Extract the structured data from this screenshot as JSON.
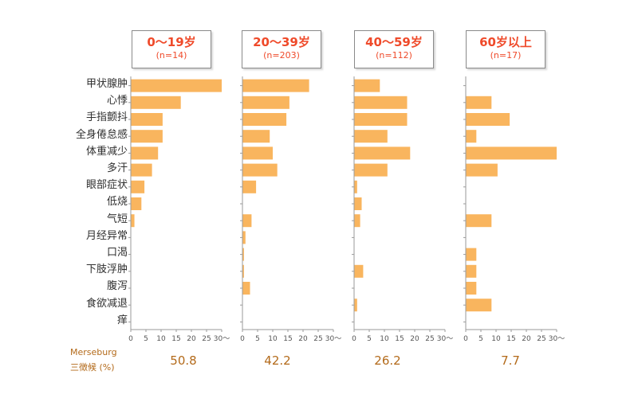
{
  "chart_data": [
    {
      "type": "bar",
      "title": "0～19岁",
      "subtitle": "(n=14)",
      "categories": [
        "甲状腺肿",
        "心悸",
        "手指颤抖",
        "全身倦怠感",
        "体重减少",
        "多汗",
        "眼部症状",
        "低烧",
        "气短",
        "月经异常",
        "口渴",
        "下肢浮肿",
        "腹泻",
        "食欲减退",
        "痒"
      ],
      "values": [
        30,
        16.5,
        10.5,
        10.5,
        9,
        7,
        4.5,
        3.5,
        1.2,
        0,
        0,
        0,
        0,
        0,
        0
      ],
      "xlim": [
        0,
        30
      ],
      "xticks": [
        "0",
        "5",
        "10",
        "15",
        "20",
        "25",
        "30〜"
      ],
      "color": "#f9b55e"
    },
    {
      "type": "bar",
      "title": "20～39岁",
      "subtitle": "(n=203)",
      "categories": [
        "甲状腺肿",
        "心悸",
        "手指颤抖",
        "全身倦怠感",
        "体重减少",
        "多汗",
        "眼部症状",
        "低烧",
        "气短",
        "月经异常",
        "口渴",
        "下肢浮肿",
        "腹泻",
        "食欲减退",
        "痒"
      ],
      "values": [
        22,
        15.5,
        14.5,
        9,
        10,
        11.5,
        4.5,
        0,
        3,
        1,
        0.5,
        0.5,
        2.5,
        0,
        0
      ],
      "xlim": [
        0,
        30
      ],
      "xticks": [
        "0",
        "5",
        "10",
        "15",
        "20",
        "25",
        "30〜"
      ],
      "color": "#f9b55e"
    },
    {
      "type": "bar",
      "title": "40～59岁",
      "subtitle": "(n=112)",
      "categories": [
        "甲状腺肿",
        "心悸",
        "手指颤抖",
        "全身倦怠感",
        "体重减少",
        "多汗",
        "眼部症状",
        "低烧",
        "气短",
        "月经异常",
        "口渴",
        "下肢浮肿",
        "腹泻",
        "食欲减退",
        "痒"
      ],
      "values": [
        8.5,
        17.5,
        17.5,
        11,
        18.5,
        11,
        1,
        2.5,
        2,
        0,
        0,
        3,
        0,
        1,
        0
      ],
      "xlim": [
        0,
        30
      ],
      "xticks": [
        "0",
        "5",
        "10",
        "15",
        "20",
        "25",
        "30〜"
      ],
      "color": "#f9b55e"
    },
    {
      "type": "bar",
      "title": "60岁以上",
      "subtitle": "(n=17)",
      "categories": [
        "甲状腺肿",
        "心悸",
        "手指颤抖",
        "全身倦怠感",
        "体重减少",
        "多汗",
        "眼部症状",
        "低烧",
        "气短",
        "月经异常",
        "口渴",
        "下肢浮肿",
        "腹泻",
        "食欲减退",
        "痒"
      ],
      "values": [
        0,
        8.5,
        14.5,
        3.5,
        30,
        10.5,
        0,
        0,
        8.5,
        0,
        3.5,
        3.5,
        3.5,
        8.5,
        0
      ],
      "xlim": [
        0,
        30
      ],
      "xticks": [
        "0",
        "5",
        "10",
        "15",
        "20",
        "25",
        "30〜"
      ],
      "color": "#f9b55e"
    }
  ],
  "footer": {
    "label_line1": "Merseburg",
    "label_line2": "三徴候 (%)",
    "values": [
      "50.8",
      "42.2",
      "26.2",
      "7.7"
    ]
  }
}
